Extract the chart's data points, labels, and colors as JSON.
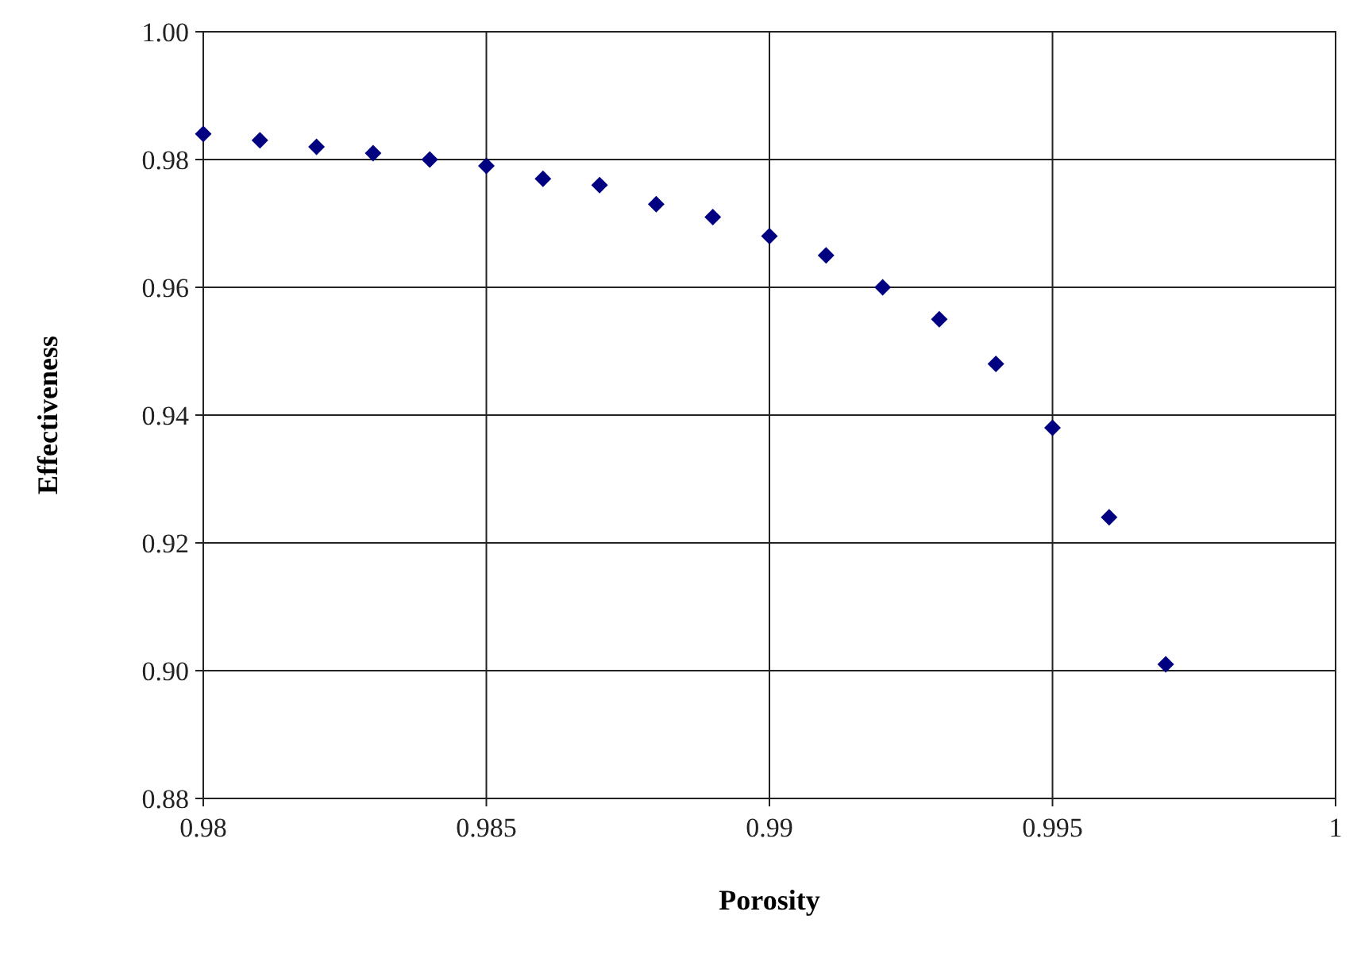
{
  "chart_data": {
    "type": "scatter",
    "xlabel": "Porosity",
    "ylabel": "Effectiveness",
    "x": [
      0.98,
      0.981,
      0.982,
      0.983,
      0.984,
      0.985,
      0.986,
      0.987,
      0.988,
      0.989,
      0.99,
      0.991,
      0.992,
      0.993,
      0.994,
      0.995,
      0.996,
      0.997
    ],
    "series": [
      {
        "color": "#000080",
        "values": [
          0.984,
          0.983,
          0.982,
          0.981,
          0.98,
          0.979,
          0.977,
          0.976,
          0.973,
          0.971,
          0.968,
          0.965,
          0.96,
          0.955,
          0.948,
          0.938,
          0.924,
          0.901
        ]
      }
    ],
    "xlim": [
      0.98,
      1
    ],
    "xticks": [
      0.98,
      0.985,
      0.99,
      0.995,
      1
    ],
    "ylim": [
      0.88,
      1
    ],
    "yticks": [
      {
        "value": 0.88,
        "label": "0.88"
      },
      {
        "value": 0.9,
        "label": "0.90"
      },
      {
        "value": 0.92,
        "label": "0.92"
      },
      {
        "value": 0.94,
        "label": "0.94"
      },
      {
        "value": 0.96,
        "label": "0.96"
      },
      {
        "value": 0.98,
        "label": "0.98"
      },
      {
        "value": 1,
        "label": "1.00"
      }
    ],
    "grid": true,
    "marker": "diamond"
  }
}
